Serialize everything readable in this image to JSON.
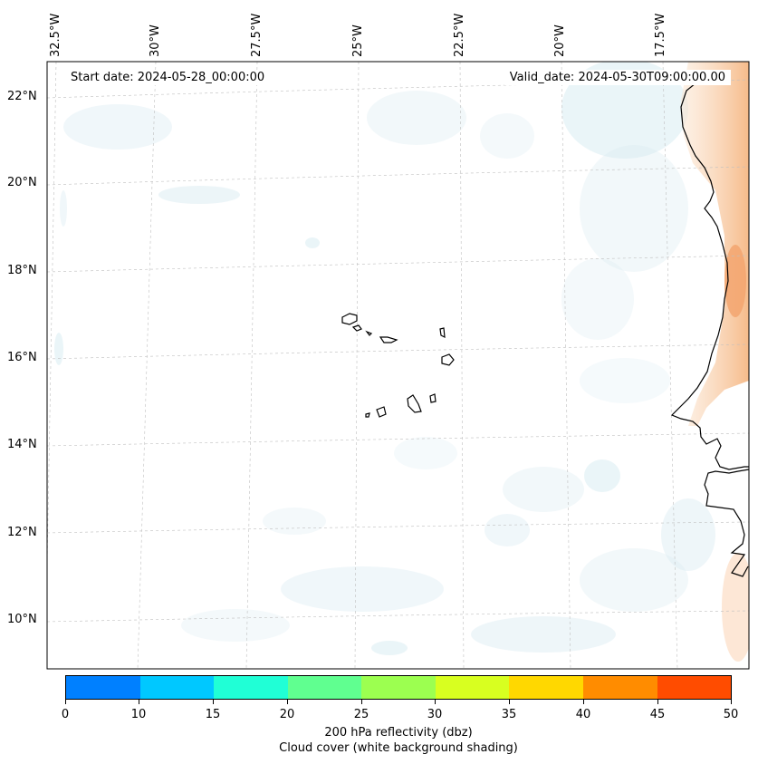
{
  "map": {
    "start_date": "Start date: 2024-05-28_00:00:00",
    "valid_date": "Valid_date: 2024-05-30T09:00:00.00",
    "longitude_labels": [
      "32.5°W",
      "30°W",
      "27.5°W",
      "25°W",
      "22.5°W",
      "20°W",
      "17.5°W"
    ],
    "latitude_labels": [
      "22°N",
      "20°N",
      "18°N",
      "16°N",
      "14°N",
      "12°N",
      "10°N"
    ]
  },
  "colorbar": {
    "ticks": [
      "0",
      "10",
      "15",
      "20",
      "25",
      "30",
      "35",
      "40",
      "45",
      "50"
    ],
    "colors": [
      "#0080ff",
      "#00c8ff",
      "#20ffd6",
      "#60ff90",
      "#9cff50",
      "#d8ff20",
      "#ffd800",
      "#ff8c00",
      "#ff4c00"
    ],
    "title_line1": "200 hPa reflectivity (dbz)",
    "title_line2": "Cloud cover (white background shading)"
  },
  "chart_data": {
    "type": "map",
    "title": "200 hPa reflectivity (dbz) with cloud cover",
    "region": "Eastern tropical Atlantic (Cape Verde) and West African coast",
    "lon_range": [
      -32.5,
      -15.5
    ],
    "lat_range": [
      9,
      22.5
    ],
    "colorbar_range": [
      0,
      50
    ],
    "colorbar_levels": [
      0,
      10,
      15,
      20,
      25,
      30,
      35,
      40,
      45,
      50
    ]
  }
}
